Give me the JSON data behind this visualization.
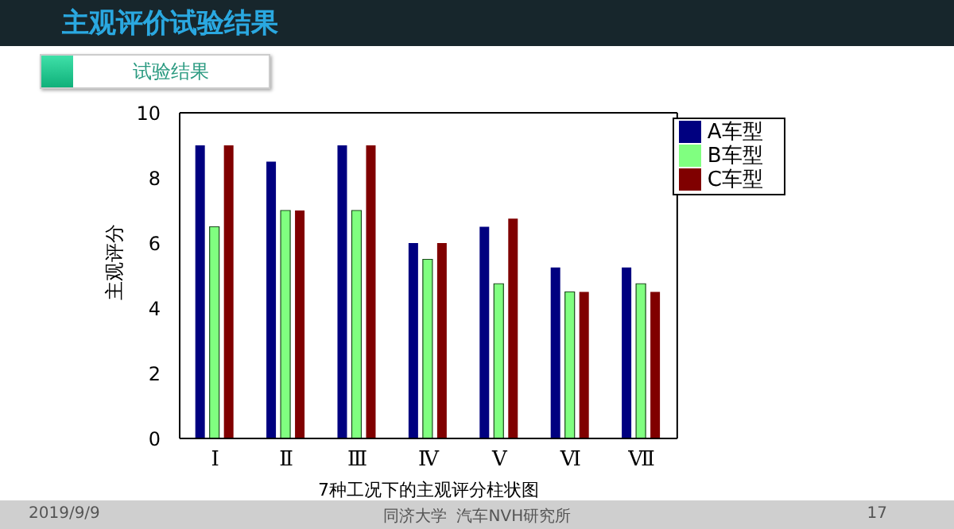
{
  "chart_data": {
    "type": "bar",
    "title": "主观评价试验结果",
    "subtitle": "试验结果",
    "xlabel": "7种工况下的主观评分柱状图",
    "ylabel": "主观评分",
    "annotations": [
      "2019/9/9",
      "同济大学  汽车NVH研究所",
      "17"
    ],
    "categories": [
      "Ⅰ",
      "Ⅱ",
      "Ⅲ",
      "Ⅳ",
      "Ⅴ",
      "Ⅵ",
      "Ⅶ"
    ],
    "series": [
      {
        "name": "A车型",
        "color": "#000080",
        "values": [
          9,
          8.5,
          9,
          6,
          6.5,
          5.25,
          5.25
        ]
      },
      {
        "name": "B车型",
        "color": "#80ff80",
        "values": [
          6.5,
          7,
          7,
          5.5,
          4.75,
          4.5,
          4.75
        ]
      },
      {
        "name": "C车型",
        "color": "#800000",
        "values": [
          9,
          7,
          9,
          6,
          6.75,
          4.5,
          4.5
        ]
      }
    ],
    "ylim": [
      0,
      10
    ],
    "yticks": [
      0,
      2,
      4,
      6,
      8,
      10
    ],
    "legend": "top right"
  }
}
